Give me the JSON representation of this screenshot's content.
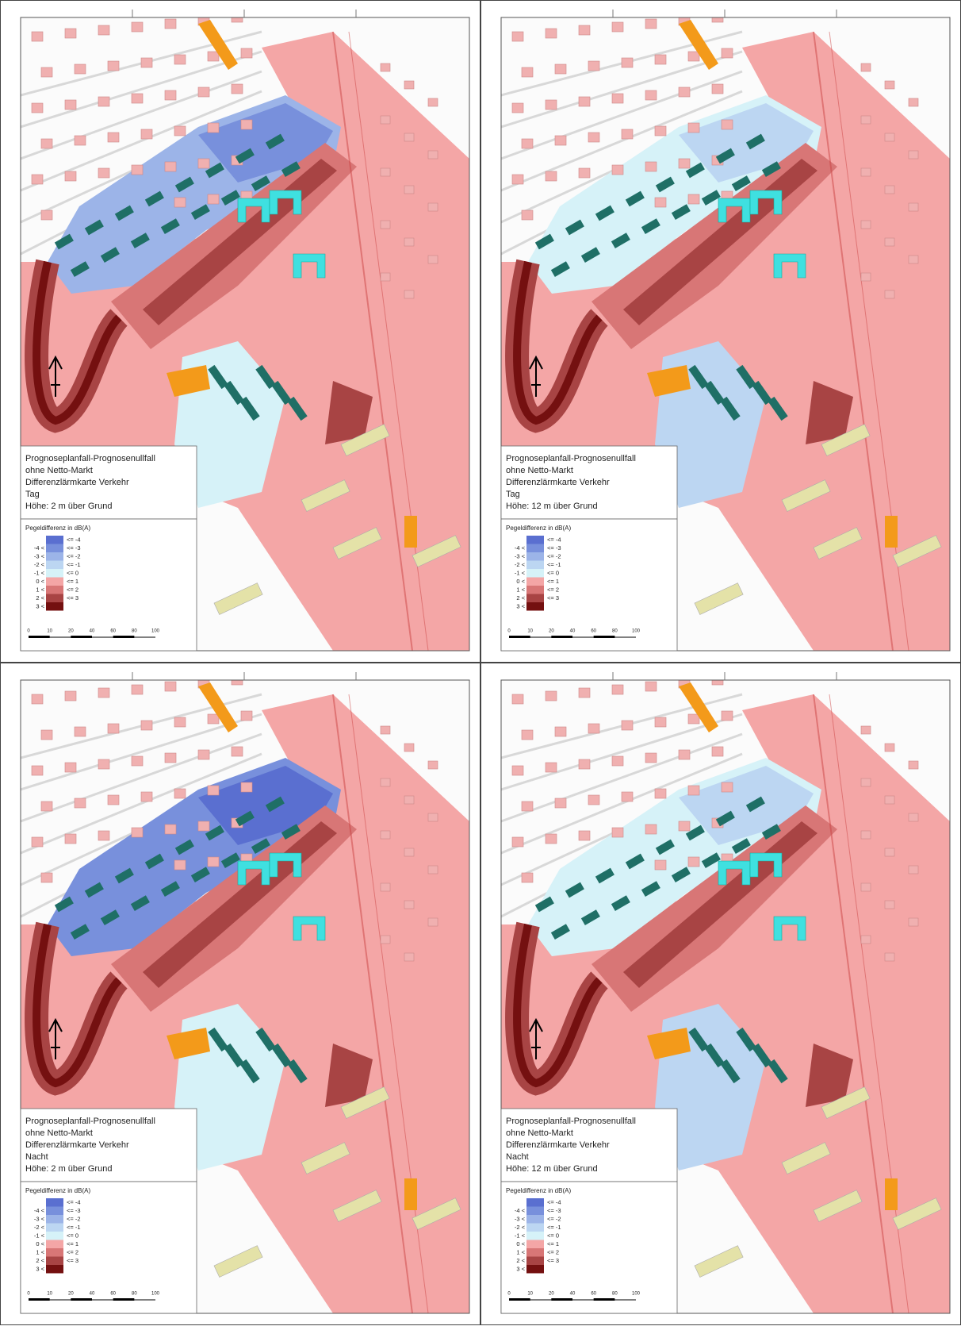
{
  "panels": [
    {
      "caption": [
        "Prognoseplanfall-Prognosenullfall",
        "ohne Netto-Markt",
        "Differenzlärmkarte Verkehr",
        "Tag",
        "Höhe: 2 m über Grund"
      ]
    },
    {
      "caption": [
        "Prognoseplanfall-Prognosenullfall",
        "ohne Netto-Markt",
        "Differenzlärmkarte Verkehr",
        "Tag",
        "Höhe: 12 m über Grund"
      ]
    },
    {
      "caption": [
        "Prognoseplanfall-Prognosenullfall",
        "ohne Netto-Markt",
        "Differenzlärmkarte Verkehr",
        "Nacht",
        "Höhe: 2 m über Grund"
      ]
    },
    {
      "caption": [
        "Prognoseplanfall-Prognosenullfall",
        "ohne Netto-Markt",
        "Differenzlärmkarte Verkehr",
        "Nacht",
        "Höhe: 12 m über Grund"
      ]
    }
  ],
  "legend": {
    "title": "Pegeldifferenz in dB(A)",
    "rows": [
      {
        "upper": "<= -4",
        "color": "#5a6fd0"
      },
      {
        "lower": "-4 <",
        "upper": "<= -3",
        "color": "#7890dc"
      },
      {
        "lower": "-3 <",
        "upper": "<= -2",
        "color": "#9cb4e8"
      },
      {
        "lower": "-2 <",
        "upper": "<= -1",
        "color": "#bcd6f2"
      },
      {
        "lower": "-1 <",
        "upper": "<= 0",
        "color": "#d6f2f8"
      },
      {
        "lower": "0 <",
        "upper": "<= 1",
        "color": "#f4a6a6"
      },
      {
        "lower": "1 <",
        "upper": "<= 2",
        "color": "#d87676"
      },
      {
        "lower": "2 <",
        "upper": "<= 3",
        "color": "#a84444"
      },
      {
        "lower": "3 <",
        "color": "#741010"
      }
    ]
  },
  "scale_labels": [
    "0",
    "10",
    "20",
    "40",
    "60",
    "80",
    "100"
  ]
}
